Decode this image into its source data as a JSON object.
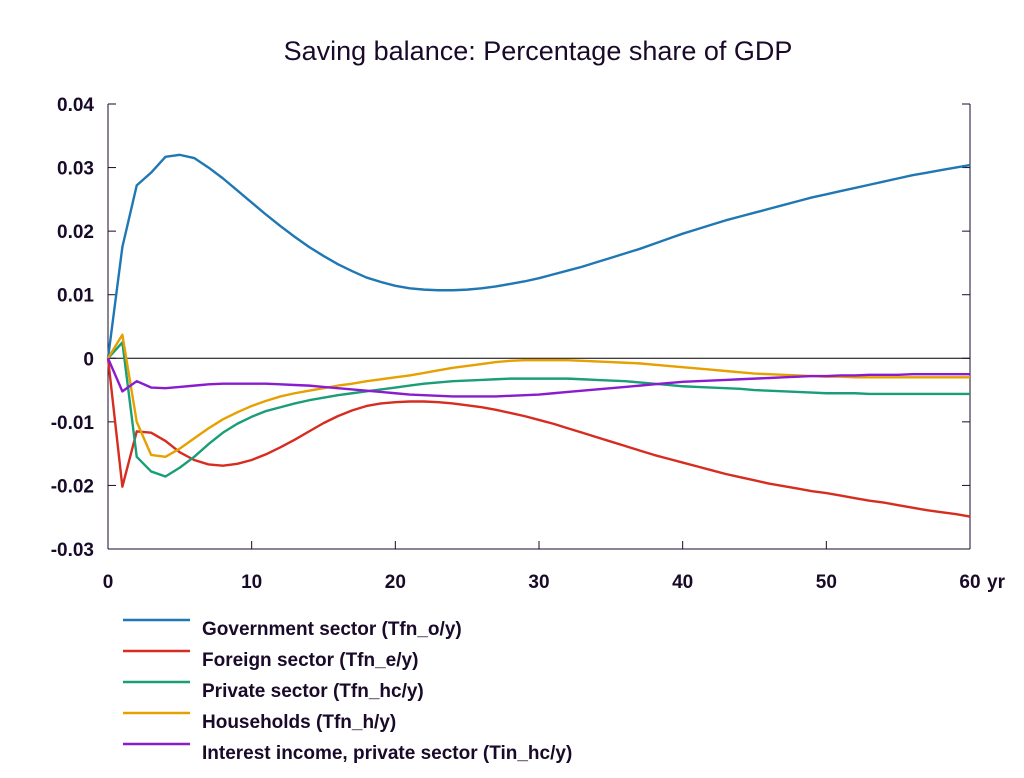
{
  "chart_data": {
    "type": "line",
    "title": "Saving balance: Percentage share of GDP",
    "x_unit_label": "yr",
    "xlim": [
      0,
      60
    ],
    "ylim": [
      -0.03,
      0.04
    ],
    "x_ticks": [
      0,
      10,
      20,
      30,
      40,
      50,
      60
    ],
    "x_tick_labels": [
      "0",
      "10",
      "20",
      "30",
      "40",
      "50",
      "60"
    ],
    "y_ticks": [
      0.04,
      0.03,
      0.02,
      0.01,
      0,
      -0.01,
      -0.02,
      -0.03
    ],
    "y_tick_labels": [
      "0.04",
      "0.03",
      "0.02",
      "0.01",
      "0",
      "-0.01",
      "-0.02",
      "-0.03"
    ],
    "zero_line": true,
    "grid": false,
    "legend_position": "bottom",
    "x": [
      0,
      1,
      2,
      3,
      4,
      5,
      6,
      7,
      8,
      9,
      10,
      11,
      12,
      13,
      14,
      15,
      16,
      17,
      18,
      19,
      20,
      21,
      22,
      23,
      24,
      25,
      26,
      27,
      28,
      29,
      30,
      31,
      32,
      33,
      34,
      35,
      36,
      37,
      38,
      39,
      40,
      41,
      42,
      43,
      44,
      45,
      46,
      47,
      48,
      49,
      50,
      51,
      52,
      53,
      54,
      55,
      56,
      57,
      58,
      59,
      60
    ],
    "series": [
      {
        "name": "Government sector (Tfn_o/y)",
        "color": "#1f77b4",
        "values": [
          0,
          0.0175,
          0.0272,
          0.0292,
          0.0317,
          0.032,
          0.0315,
          0.03,
          0.0283,
          0.0264,
          0.0245,
          0.0226,
          0.0208,
          0.0191,
          0.0175,
          0.0161,
          0.0148,
          0.0137,
          0.0127,
          0.012,
          0.0114,
          0.011,
          0.0108,
          0.0107,
          0.0107,
          0.0108,
          0.011,
          0.0113,
          0.0117,
          0.0121,
          0.0126,
          0.0132,
          0.0138,
          0.0144,
          0.0151,
          0.0158,
          0.0165,
          0.0172,
          0.018,
          0.0188,
          0.0196,
          0.0203,
          0.021,
          0.0217,
          0.0223,
          0.0229,
          0.0235,
          0.0241,
          0.0247,
          0.0253,
          0.0258,
          0.0263,
          0.0268,
          0.0273,
          0.0278,
          0.0283,
          0.0288,
          0.0292,
          0.0296,
          0.03,
          0.0304
        ]
      },
      {
        "name": "Foreign sector (Tfn_e/y)",
        "color": "#d62d20",
        "values": [
          0,
          -0.0202,
          -0.0115,
          -0.0117,
          -0.013,
          -0.0148,
          -0.016,
          -0.0167,
          -0.0169,
          -0.0166,
          -0.016,
          -0.0151,
          -0.014,
          -0.0128,
          -0.0115,
          -0.0102,
          -0.0091,
          -0.0082,
          -0.0075,
          -0.0071,
          -0.0069,
          -0.0068,
          -0.0068,
          -0.0069,
          -0.0071,
          -0.0074,
          -0.0077,
          -0.0081,
          -0.0086,
          -0.0091,
          -0.0097,
          -0.0103,
          -0.011,
          -0.0117,
          -0.0124,
          -0.0131,
          -0.0138,
          -0.0145,
          -0.0152,
          -0.0158,
          -0.0164,
          -0.017,
          -0.0176,
          -0.0182,
          -0.0187,
          -0.0192,
          -0.0197,
          -0.0201,
          -0.0205,
          -0.0209,
          -0.0212,
          -0.0216,
          -0.022,
          -0.0224,
          -0.0227,
          -0.0231,
          -0.0235,
          -0.0239,
          -0.0242,
          -0.0245,
          -0.0249
        ]
      },
      {
        "name": "Private sector (Tfn_hc/y)",
        "color": "#1a9e77",
        "values": [
          0,
          0.0025,
          -0.0155,
          -0.0178,
          -0.0186,
          -0.0172,
          -0.0155,
          -0.0135,
          -0.0117,
          -0.0103,
          -0.0092,
          -0.0083,
          -0.0077,
          -0.0071,
          -0.0066,
          -0.0062,
          -0.0058,
          -0.0055,
          -0.0052,
          -0.0049,
          -0.0046,
          -0.0043,
          -0.004,
          -0.0038,
          -0.0036,
          -0.0035,
          -0.0034,
          -0.0033,
          -0.0032,
          -0.0032,
          -0.0032,
          -0.0032,
          -0.0032,
          -0.0033,
          -0.0034,
          -0.0035,
          -0.0036,
          -0.0038,
          -0.004,
          -0.0042,
          -0.0044,
          -0.0045,
          -0.0046,
          -0.0047,
          -0.0048,
          -0.005,
          -0.0051,
          -0.0052,
          -0.0053,
          -0.0054,
          -0.0055,
          -0.0055,
          -0.0055,
          -0.0056,
          -0.0056,
          -0.0056,
          -0.0056,
          -0.0056,
          -0.0056,
          -0.0056,
          -0.0056
        ]
      },
      {
        "name": "Households (Tfn_h/y)",
        "color": "#e6a000",
        "values": [
          0,
          0.0037,
          -0.01,
          -0.0152,
          -0.0155,
          -0.0142,
          -0.0126,
          -0.011,
          -0.0096,
          -0.0085,
          -0.0075,
          -0.0067,
          -0.006,
          -0.0055,
          -0.0051,
          -0.0047,
          -0.0043,
          -0.004,
          -0.0036,
          -0.0033,
          -0.003,
          -0.0027,
          -0.0023,
          -0.0019,
          -0.0015,
          -0.0012,
          -0.0009,
          -0.0006,
          -0.0004,
          -0.0003,
          -0.0003,
          -0.0003,
          -0.0003,
          -0.0004,
          -0.0005,
          -0.0006,
          -0.0007,
          -0.0008,
          -0.001,
          -0.0012,
          -0.0014,
          -0.0016,
          -0.0018,
          -0.002,
          -0.0022,
          -0.0024,
          -0.0025,
          -0.0026,
          -0.0027,
          -0.0028,
          -0.0029,
          -0.0029,
          -0.003,
          -0.003,
          -0.003,
          -0.003,
          -0.003,
          -0.003,
          -0.003,
          -0.003,
          -0.003
        ]
      },
      {
        "name": "Interest income, private sector (Tin_hc/y)",
        "color": "#8a1ccf",
        "values": [
          0,
          -0.0052,
          -0.0036,
          -0.0046,
          -0.0047,
          -0.0045,
          -0.0043,
          -0.0041,
          -0.004,
          -0.004,
          -0.004,
          -0.004,
          -0.0041,
          -0.0042,
          -0.0043,
          -0.0045,
          -0.0047,
          -0.0049,
          -0.0051,
          -0.0053,
          -0.0055,
          -0.0057,
          -0.0058,
          -0.0059,
          -0.006,
          -0.006,
          -0.006,
          -0.006,
          -0.0059,
          -0.0058,
          -0.0057,
          -0.0055,
          -0.0053,
          -0.0051,
          -0.0049,
          -0.0047,
          -0.0045,
          -0.0043,
          -0.0041,
          -0.0039,
          -0.0037,
          -0.0036,
          -0.0035,
          -0.0034,
          -0.0033,
          -0.0032,
          -0.0031,
          -0.003,
          -0.0029,
          -0.0028,
          -0.0028,
          -0.0027,
          -0.0027,
          -0.0026,
          -0.0026,
          -0.0026,
          -0.0025,
          -0.0025,
          -0.0025,
          -0.0025,
          -0.0025
        ]
      }
    ]
  }
}
